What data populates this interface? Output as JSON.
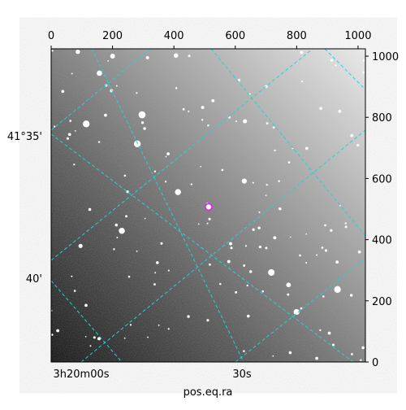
{
  "chart_data": {
    "type": "image",
    "xlabel": "pos.eq.ra",
    "xlim": [
      0,
      1024
    ],
    "xticks": [
      0,
      200,
      400,
      600,
      800,
      1000
    ],
    "ylim": [
      0,
      1024
    ],
    "yticks": [
      0,
      200,
      400,
      600,
      800,
      1000
    ],
    "ra_labels": [
      "3h20m00s",
      "30s"
    ],
    "dec_labels": [
      "41°35'",
      "40'"
    ],
    "marker": {
      "x": 513,
      "y": 507,
      "color": "#e020e0"
    }
  }
}
